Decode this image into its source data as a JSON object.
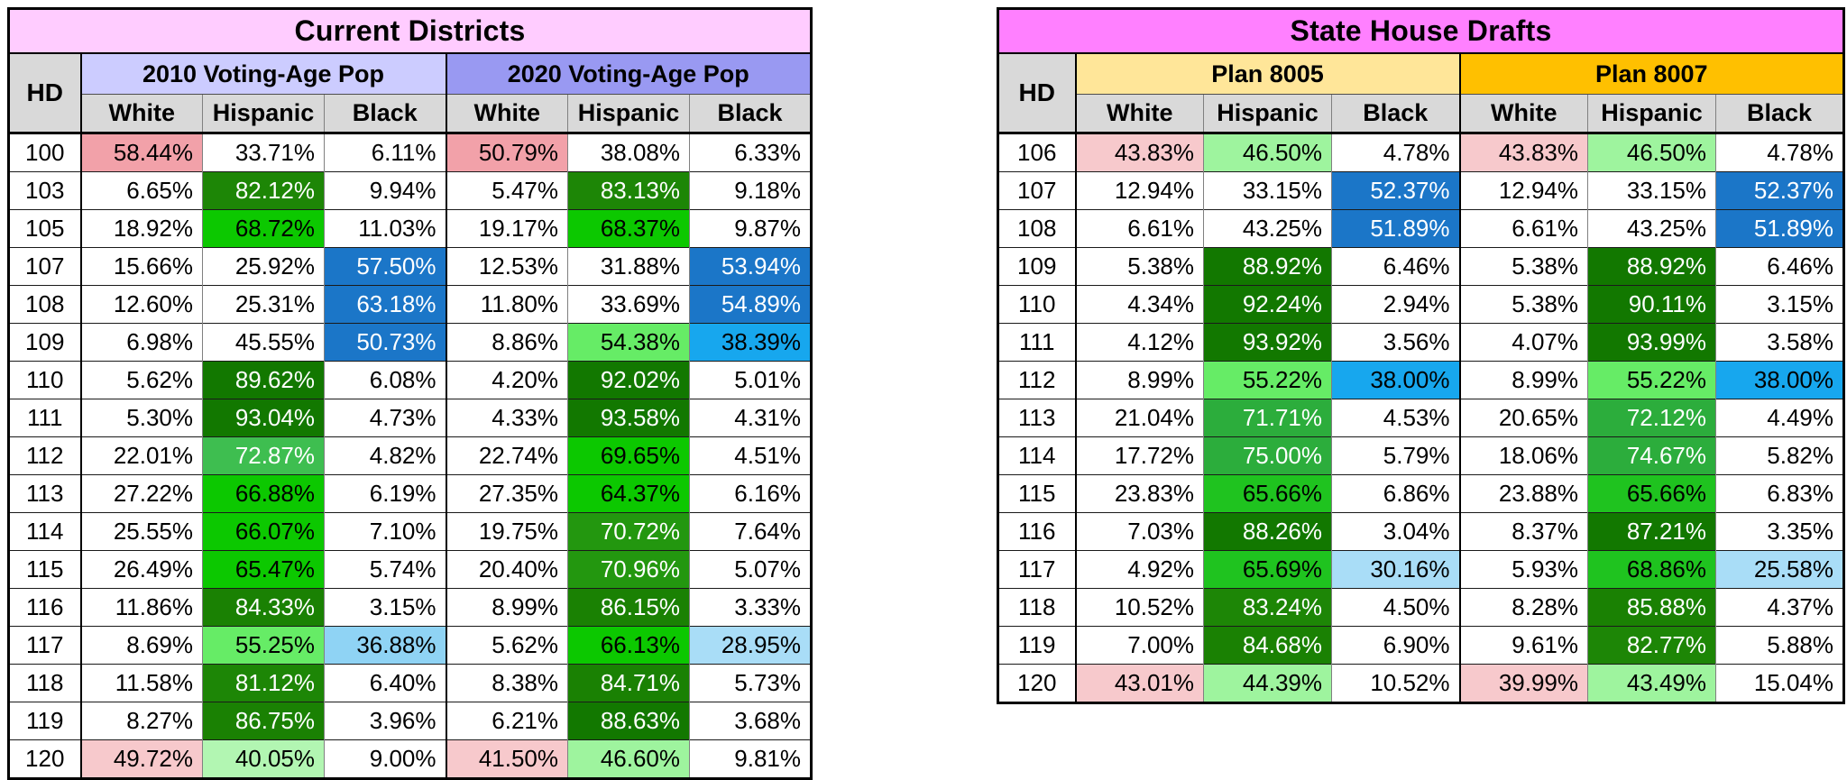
{
  "colors": {
    "column_header_bg": "#D9D9D9",
    "table_border": "#000000",
    "left_title_bg": "#FFCCFF",
    "right_title_bg": "#FF80FF",
    "group_2010_bg": "#CCCCFF",
    "group_2020_bg": "#9999F2",
    "plan_8005_bg": "#FFE699",
    "plan_8007_bg": "#FFC000"
  },
  "palette": {
    "S": {
      "bg": "#F2A1A9",
      "fg": "#000000"
    },
    "LP": {
      "bg": "#F7C9CC",
      "fg": "#000000"
    },
    "DB": {
      "bg": "#1B76C8",
      "fg": "#FFFFFF"
    },
    "CY": {
      "bg": "#17A7EE",
      "fg": "#000000"
    },
    "LB36": {
      "bg": "#8FD3F4",
      "fg": "#000000"
    },
    "LB": {
      "bg": "#A9DDF7",
      "fg": "#000000"
    },
    "DG": {
      "bg": "#127800",
      "fg": "#FFFFFF"
    },
    "DG2": {
      "bg": "#1A8103",
      "fg": "#FFFFFF"
    },
    "G82": {
      "bg": "#1D8606",
      "fg": "#FFFFFF"
    },
    "MDG": {
      "bg": "#23970F",
      "fg": "#FFFFFF"
    },
    "MG": {
      "bg": "#3EBE50",
      "fg": "#FFFFFF"
    },
    "MG2": {
      "bg": "#2CAD3C",
      "fg": "#FFFFFF"
    },
    "BG": {
      "bg": "#0CC800",
      "fg": "#000000"
    },
    "BG2": {
      "bg": "#1FC31F",
      "fg": "#000000"
    },
    "LG": {
      "bg": "#66EC66",
      "fg": "#000000"
    },
    "PG": {
      "bg": "#9EF49E",
      "fg": "#000000"
    },
    "PG40": {
      "bg": "#B2F6B2",
      "fg": "#000000"
    }
  },
  "chart_data": [
    {
      "type": "table",
      "title": "Current Districts",
      "title_bg": "#FFCCFF",
      "hd_label": "HD",
      "groups": [
        {
          "label": "2010 Voting-Age Pop",
          "bg": "#CCCCFF",
          "columns": [
            "White",
            "Hispanic",
            "Black"
          ]
        },
        {
          "label": "2020 Voting-Age Pop",
          "bg": "#9999F2",
          "columns": [
            "White",
            "Hispanic",
            "Black"
          ]
        }
      ],
      "rows": [
        {
          "hd": "100",
          "cells": [
            [
              "58.44%",
              "S"
            ],
            [
              "33.71%"
            ],
            [
              "6.11%"
            ],
            [
              "50.79%",
              "S"
            ],
            [
              "38.08%"
            ],
            [
              "6.33%"
            ]
          ]
        },
        {
          "hd": "103",
          "cells": [
            [
              "6.65%"
            ],
            [
              "82.12%",
              "G82"
            ],
            [
              "9.94%"
            ],
            [
              "5.47%"
            ],
            [
              "83.13%",
              "G82"
            ],
            [
              "9.18%"
            ]
          ]
        },
        {
          "hd": "105",
          "cells": [
            [
              "18.92%"
            ],
            [
              "68.72%",
              "BG"
            ],
            [
              "11.03%"
            ],
            [
              "19.17%"
            ],
            [
              "68.37%",
              "BG"
            ],
            [
              "9.87%"
            ]
          ]
        },
        {
          "hd": "107",
          "cells": [
            [
              "15.66%"
            ],
            [
              "25.92%"
            ],
            [
              "57.50%",
              "DB"
            ],
            [
              "12.53%"
            ],
            [
              "31.88%"
            ],
            [
              "53.94%",
              "DB"
            ]
          ]
        },
        {
          "hd": "108",
          "cells": [
            [
              "12.60%"
            ],
            [
              "25.31%"
            ],
            [
              "63.18%",
              "DB"
            ],
            [
              "11.80%"
            ],
            [
              "33.69%"
            ],
            [
              "54.89%",
              "DB"
            ]
          ]
        },
        {
          "hd": "109",
          "cells": [
            [
              "6.98%"
            ],
            [
              "45.55%"
            ],
            [
              "50.73%",
              "DB"
            ],
            [
              "8.86%"
            ],
            [
              "54.38%",
              "LG"
            ],
            [
              "38.39%",
              "CY"
            ]
          ]
        },
        {
          "hd": "110",
          "cells": [
            [
              "5.62%"
            ],
            [
              "89.62%",
              "DG"
            ],
            [
              "6.08%"
            ],
            [
              "4.20%"
            ],
            [
              "92.02%",
              "DG"
            ],
            [
              "5.01%"
            ]
          ]
        },
        {
          "hd": "111",
          "cells": [
            [
              "5.30%"
            ],
            [
              "93.04%",
              "DG"
            ],
            [
              "4.73%"
            ],
            [
              "4.33%"
            ],
            [
              "93.58%",
              "DG"
            ],
            [
              "4.31%"
            ]
          ]
        },
        {
          "hd": "112",
          "cells": [
            [
              "22.01%"
            ],
            [
              "72.87%",
              "MG"
            ],
            [
              "4.82%"
            ],
            [
              "22.74%"
            ],
            [
              "69.65%",
              "BG"
            ],
            [
              "4.51%"
            ]
          ]
        },
        {
          "hd": "113",
          "cells": [
            [
              "27.22%"
            ],
            [
              "66.88%",
              "BG"
            ],
            [
              "6.19%"
            ],
            [
              "27.35%"
            ],
            [
              "64.37%",
              "BG"
            ],
            [
              "6.16%"
            ]
          ]
        },
        {
          "hd": "114",
          "cells": [
            [
              "25.55%"
            ],
            [
              "66.07%",
              "BG"
            ],
            [
              "7.10%"
            ],
            [
              "19.75%"
            ],
            [
              "70.72%",
              "MDG"
            ],
            [
              "7.64%"
            ]
          ]
        },
        {
          "hd": "115",
          "cells": [
            [
              "26.49%"
            ],
            [
              "65.47%",
              "BG"
            ],
            [
              "5.74%"
            ],
            [
              "20.40%"
            ],
            [
              "70.96%",
              "MDG"
            ],
            [
              "5.07%"
            ]
          ]
        },
        {
          "hd": "116",
          "cells": [
            [
              "11.86%"
            ],
            [
              "84.33%",
              "DG2"
            ],
            [
              "3.15%"
            ],
            [
              "8.99%"
            ],
            [
              "86.15%",
              "DG2"
            ],
            [
              "3.33%"
            ]
          ]
        },
        {
          "hd": "117",
          "cells": [
            [
              "8.69%"
            ],
            [
              "55.25%",
              "LG"
            ],
            [
              "36.88%",
              "LB36"
            ],
            [
              "5.62%"
            ],
            [
              "66.13%",
              "BG"
            ],
            [
              "28.95%",
              "LB"
            ]
          ]
        },
        {
          "hd": "118",
          "cells": [
            [
              "11.58%"
            ],
            [
              "81.12%",
              "G82"
            ],
            [
              "6.40%"
            ],
            [
              "8.38%"
            ],
            [
              "84.71%",
              "DG2"
            ],
            [
              "5.73%"
            ]
          ]
        },
        {
          "hd": "119",
          "cells": [
            [
              "8.27%"
            ],
            [
              "86.75%",
              "DG2"
            ],
            [
              "3.96%"
            ],
            [
              "6.21%"
            ],
            [
              "88.63%",
              "DG"
            ],
            [
              "3.68%"
            ]
          ]
        },
        {
          "hd": "120",
          "cells": [
            [
              "49.72%",
              "LP"
            ],
            [
              "40.05%",
              "PG40"
            ],
            [
              "9.00%"
            ],
            [
              "41.50%",
              "LP"
            ],
            [
              "46.60%",
              "PG"
            ],
            [
              "9.81%"
            ]
          ]
        }
      ]
    },
    {
      "type": "table",
      "title": "State House Drafts",
      "title_bg": "#FF80FF",
      "hd_label": "HD",
      "groups": [
        {
          "label": "Plan 8005",
          "bg": "#FFE699",
          "columns": [
            "White",
            "Hispanic",
            "Black"
          ]
        },
        {
          "label": "Plan 8007",
          "bg": "#FFC000",
          "columns": [
            "White",
            "Hispanic",
            "Black"
          ]
        }
      ],
      "rows": [
        {
          "hd": "106",
          "cells": [
            [
              "43.83%",
              "LP"
            ],
            [
              "46.50%",
              "PG"
            ],
            [
              "4.78%"
            ],
            [
              "43.83%",
              "LP"
            ],
            [
              "46.50%",
              "PG"
            ],
            [
              "4.78%"
            ]
          ]
        },
        {
          "hd": "107",
          "cells": [
            [
              "12.94%"
            ],
            [
              "33.15%"
            ],
            [
              "52.37%",
              "DB"
            ],
            [
              "12.94%"
            ],
            [
              "33.15%"
            ],
            [
              "52.37%",
              "DB"
            ]
          ]
        },
        {
          "hd": "108",
          "cells": [
            [
              "6.61%"
            ],
            [
              "43.25%"
            ],
            [
              "51.89%",
              "DB"
            ],
            [
              "6.61%"
            ],
            [
              "43.25%"
            ],
            [
              "51.89%",
              "DB"
            ]
          ]
        },
        {
          "hd": "109",
          "cells": [
            [
              "5.38%"
            ],
            [
              "88.92%",
              "DG"
            ],
            [
              "6.46%"
            ],
            [
              "5.38%"
            ],
            [
              "88.92%",
              "DG"
            ],
            [
              "6.46%"
            ]
          ]
        },
        {
          "hd": "110",
          "cells": [
            [
              "4.34%"
            ],
            [
              "92.24%",
              "DG"
            ],
            [
              "2.94%"
            ],
            [
              "5.38%"
            ],
            [
              "90.11%",
              "DG"
            ],
            [
              "3.15%"
            ]
          ]
        },
        {
          "hd": "111",
          "cells": [
            [
              "4.12%"
            ],
            [
              "93.92%",
              "DG"
            ],
            [
              "3.56%"
            ],
            [
              "4.07%"
            ],
            [
              "93.99%",
              "DG"
            ],
            [
              "3.58%"
            ]
          ]
        },
        {
          "hd": "112",
          "cells": [
            [
              "8.99%"
            ],
            [
              "55.22%",
              "LG"
            ],
            [
              "38.00%",
              "CY"
            ],
            [
              "8.99%"
            ],
            [
              "55.22%",
              "LG"
            ],
            [
              "38.00%",
              "CY"
            ]
          ]
        },
        {
          "hd": "113",
          "cells": [
            [
              "21.04%"
            ],
            [
              "71.71%",
              "MG2"
            ],
            [
              "4.53%"
            ],
            [
              "20.65%"
            ],
            [
              "72.12%",
              "MG2"
            ],
            [
              "4.49%"
            ]
          ]
        },
        {
          "hd": "114",
          "cells": [
            [
              "17.72%"
            ],
            [
              "75.00%",
              "MG2"
            ],
            [
              "5.79%"
            ],
            [
              "18.06%"
            ],
            [
              "74.67%",
              "MG2"
            ],
            [
              "5.82%"
            ]
          ]
        },
        {
          "hd": "115",
          "cells": [
            [
              "23.83%"
            ],
            [
              "65.66%",
              "BG2"
            ],
            [
              "6.86%"
            ],
            [
              "23.88%"
            ],
            [
              "65.66%",
              "BG2"
            ],
            [
              "6.83%"
            ]
          ]
        },
        {
          "hd": "116",
          "cells": [
            [
              "7.03%"
            ],
            [
              "88.26%",
              "DG"
            ],
            [
              "3.04%"
            ],
            [
              "8.37%"
            ],
            [
              "87.21%",
              "DG"
            ],
            [
              "3.35%"
            ]
          ]
        },
        {
          "hd": "117",
          "cells": [
            [
              "4.92%"
            ],
            [
              "65.69%",
              "BG2"
            ],
            [
              "30.16%",
              "LB"
            ],
            [
              "5.93%"
            ],
            [
              "68.86%",
              "BG2"
            ],
            [
              "25.58%",
              "LB"
            ]
          ]
        },
        {
          "hd": "118",
          "cells": [
            [
              "10.52%"
            ],
            [
              "83.24%",
              "G82"
            ],
            [
              "4.50%"
            ],
            [
              "8.28%"
            ],
            [
              "85.88%",
              "DG2"
            ],
            [
              "4.37%"
            ]
          ]
        },
        {
          "hd": "119",
          "cells": [
            [
              "7.00%"
            ],
            [
              "84.68%",
              "DG2"
            ],
            [
              "6.90%"
            ],
            [
              "9.61%"
            ],
            [
              "82.77%",
              "G82"
            ],
            [
              "5.88%"
            ]
          ]
        },
        {
          "hd": "120",
          "cells": [
            [
              "43.01%",
              "LP"
            ],
            [
              "44.39%",
              "PG"
            ],
            [
              "10.52%"
            ],
            [
              "39.99%",
              "LP"
            ],
            [
              "43.49%",
              "PG"
            ],
            [
              "15.04%"
            ]
          ]
        }
      ]
    }
  ]
}
